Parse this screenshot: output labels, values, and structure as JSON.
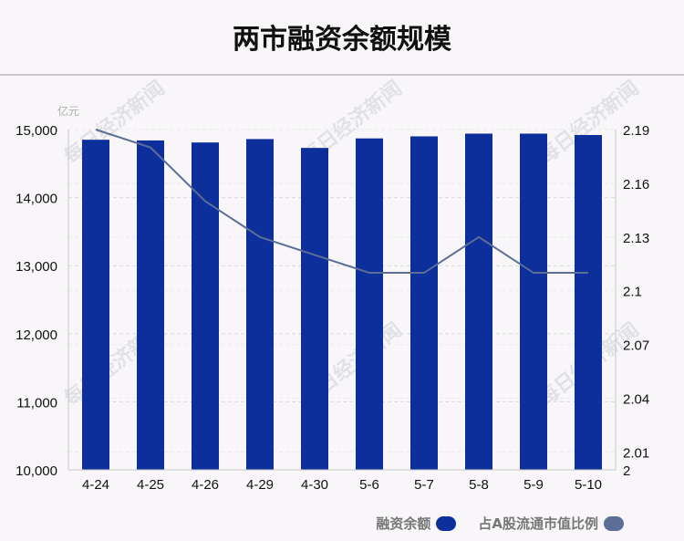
{
  "title": "两市融资余额规模",
  "unit_label": "亿元",
  "watermark": "每日经济新闻",
  "colors": {
    "bar": "#0d2f9c",
    "line": "#5a6e96",
    "grid": "#dcdcdc",
    "axis": "#c8c8c8"
  },
  "legend": [
    {
      "label": "融资余额",
      "color": "#0d2f9c"
    },
    {
      "label": "占A股流通市值比例",
      "color": "#5a6e96"
    }
  ],
  "chart_data": {
    "type": "bar",
    "categories": [
      "4-24",
      "4-25",
      "4-26",
      "4-29",
      "4-30",
      "5-6",
      "5-7",
      "5-8",
      "5-9",
      "5-10"
    ],
    "series": [
      {
        "name": "融资余额",
        "type": "bar",
        "axis": "left",
        "values": [
          14850,
          14840,
          14810,
          14860,
          14730,
          14870,
          14900,
          14940,
          14940,
          14920
        ]
      },
      {
        "name": "占A股流通市值比例",
        "type": "line",
        "axis": "right",
        "values": [
          2.19,
          2.18,
          2.15,
          2.13,
          2.12,
          2.11,
          2.11,
          2.13,
          2.11,
          2.11
        ]
      }
    ],
    "ylim_left": [
      10000,
      15000
    ],
    "yticks_left": [
      "10,000",
      "11,000",
      "12,000",
      "13,000",
      "14,000",
      "15,000"
    ],
    "ylim_right": [
      2,
      2.19
    ],
    "yticks_right": [
      {
        "value": 2,
        "label": "2"
      },
      {
        "value": 2.01,
        "label": "2.01"
      },
      {
        "value": 2.04,
        "label": "2.04"
      },
      {
        "value": 2.07,
        "label": "2.07"
      },
      {
        "value": 2.1,
        "label": "2.1"
      },
      {
        "value": 2.13,
        "label": "2.13"
      },
      {
        "value": 2.16,
        "label": "2.16"
      },
      {
        "value": 2.19,
        "label": "2.19"
      }
    ],
    "grid": true,
    "legend_position": "bottom-right"
  }
}
